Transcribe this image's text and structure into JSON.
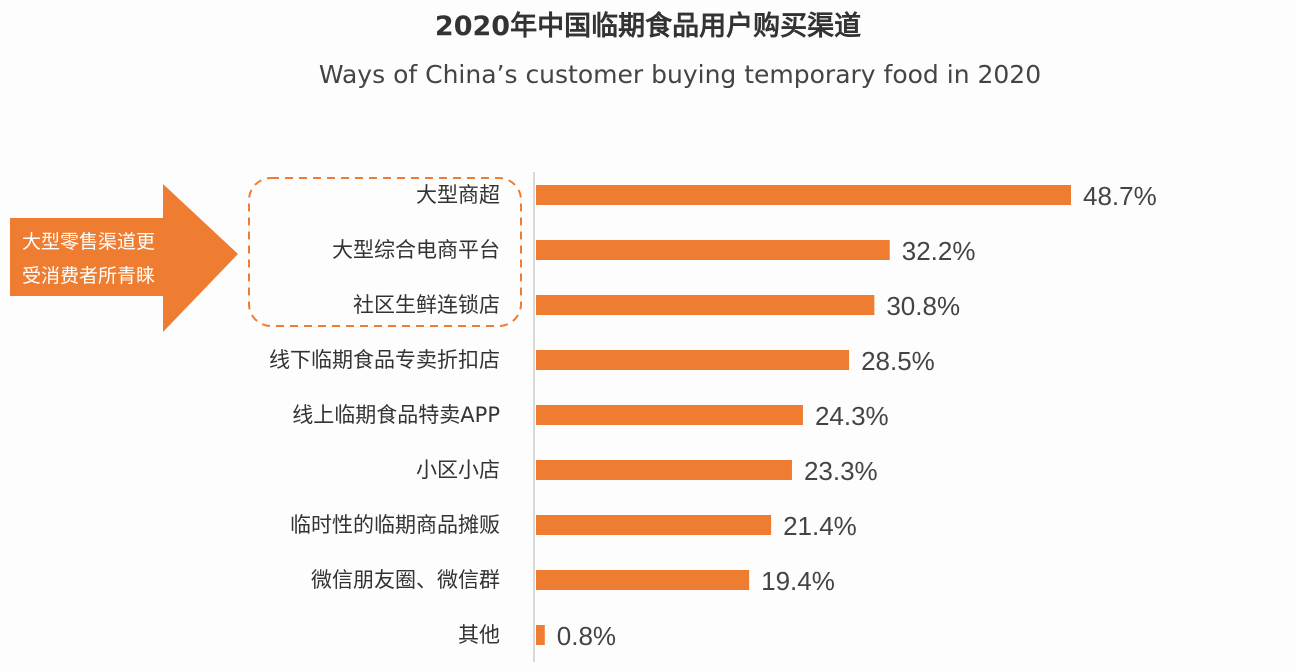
{
  "chart_data": {
    "type": "bar",
    "orientation": "horizontal",
    "title": "2020年中国临期食品用户购买渠道",
    "subtitle": "Ways of China’s customer buying temporary food in 2020",
    "categories": [
      "大型商超",
      "大型综合电商平台",
      "社区生鲜连锁店",
      "线下临期食品专卖折扣店",
      "线上临期食品特卖APP",
      "小区小店",
      "临时性的临期商品摊贩",
      "微信朋友圈、微信群",
      "其他"
    ],
    "values": [
      48.7,
      32.2,
      30.8,
      28.5,
      24.3,
      23.3,
      21.4,
      19.4,
      0.8
    ],
    "value_labels": [
      "48.7%",
      "32.2%",
      "30.8%",
      "28.5%",
      "24.3%",
      "23.3%",
      "21.4%",
      "19.4%",
      "0.8%"
    ],
    "unit": "%",
    "xlabel": "",
    "ylabel": "",
    "grid": false,
    "bar_color": "#ee7d31",
    "annotation": {
      "lines": [
        "大型零售渠道更",
        "受消费者所青睐"
      ],
      "color": "#ee7d31",
      "highlighted_categories": [
        "大型商超",
        "大型综合电商平台",
        "社区生鲜连锁店"
      ]
    }
  }
}
